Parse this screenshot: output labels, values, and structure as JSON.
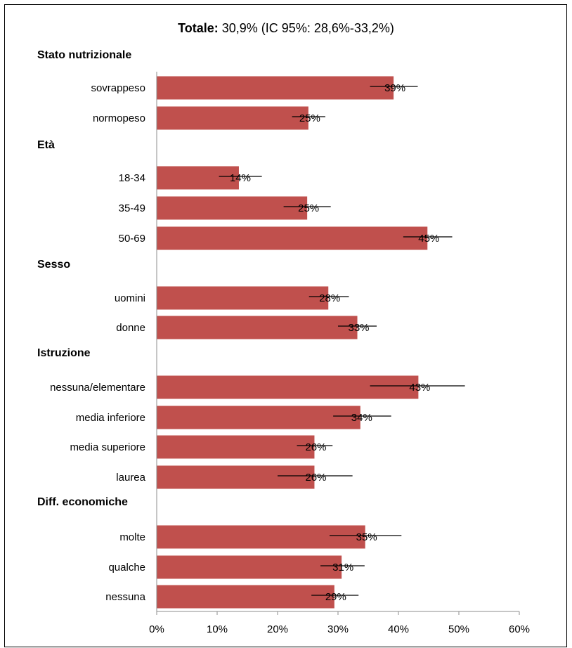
{
  "chart_data": {
    "type": "bar",
    "orientation": "horizontal",
    "title_bold": "Totale:",
    "title_rest": " 30,9% (IC 95%: 28,6%-33,2%)",
    "xlim": [
      0,
      60
    ],
    "xticks": [
      "0%",
      "10%",
      "20%",
      "30%",
      "40%",
      "50%",
      "60%"
    ],
    "bar_color": "#c0504d",
    "groups": [
      {
        "name": "Stato nutrizionale",
        "items": [
          {
            "category": "sovrappeso",
            "value": 39.2,
            "label": "39%",
            "ci": [
              35.3,
              43.2
            ]
          },
          {
            "category": "normopeso",
            "value": 25.1,
            "label": "25%",
            "ci": [
              22.4,
              27.9
            ]
          }
        ]
      },
      {
        "name": "Età",
        "items": [
          {
            "category": "18-34",
            "value": 13.6,
            "label": "14%",
            "ci": [
              10.3,
              17.4
            ]
          },
          {
            "category": "35-49",
            "value": 24.9,
            "label": "25%",
            "ci": [
              21.0,
              28.8
            ]
          },
          {
            "category": "50-69",
            "value": 44.8,
            "label": "45%",
            "ci": [
              40.8,
              48.9
            ]
          }
        ]
      },
      {
        "name": "Sesso",
        "items": [
          {
            "category": "uomini",
            "value": 28.4,
            "label": "28%",
            "ci": [
              25.2,
              31.8
            ]
          },
          {
            "category": "donne",
            "value": 33.2,
            "label": "33%",
            "ci": [
              30.0,
              36.4
            ]
          }
        ]
      },
      {
        "name": "Istruzione",
        "items": [
          {
            "category": "nessuna/elementare",
            "value": 43.3,
            "label": "43%",
            "ci": [
              35.3,
              51.0
            ]
          },
          {
            "category": "media inferiore",
            "value": 33.7,
            "label": "34%",
            "ci": [
              29.2,
              38.8
            ]
          },
          {
            "category": "media superiore",
            "value": 26.1,
            "label": "26%",
            "ci": [
              23.2,
              29.1
            ]
          },
          {
            "category": "laurea",
            "value": 26.1,
            "label": "26%",
            "ci": [
              20.0,
              32.4
            ]
          }
        ]
      },
      {
        "name": "Diff. economiche",
        "items": [
          {
            "category": "molte",
            "value": 34.5,
            "label": "35%",
            "ci": [
              28.6,
              40.5
            ]
          },
          {
            "category": "qualche",
            "value": 30.6,
            "label": "31%",
            "ci": [
              27.1,
              34.4
            ]
          },
          {
            "category": "nessuna",
            "value": 29.4,
            "label": "29%",
            "ci": [
              25.6,
              33.4
            ]
          }
        ]
      }
    ]
  }
}
